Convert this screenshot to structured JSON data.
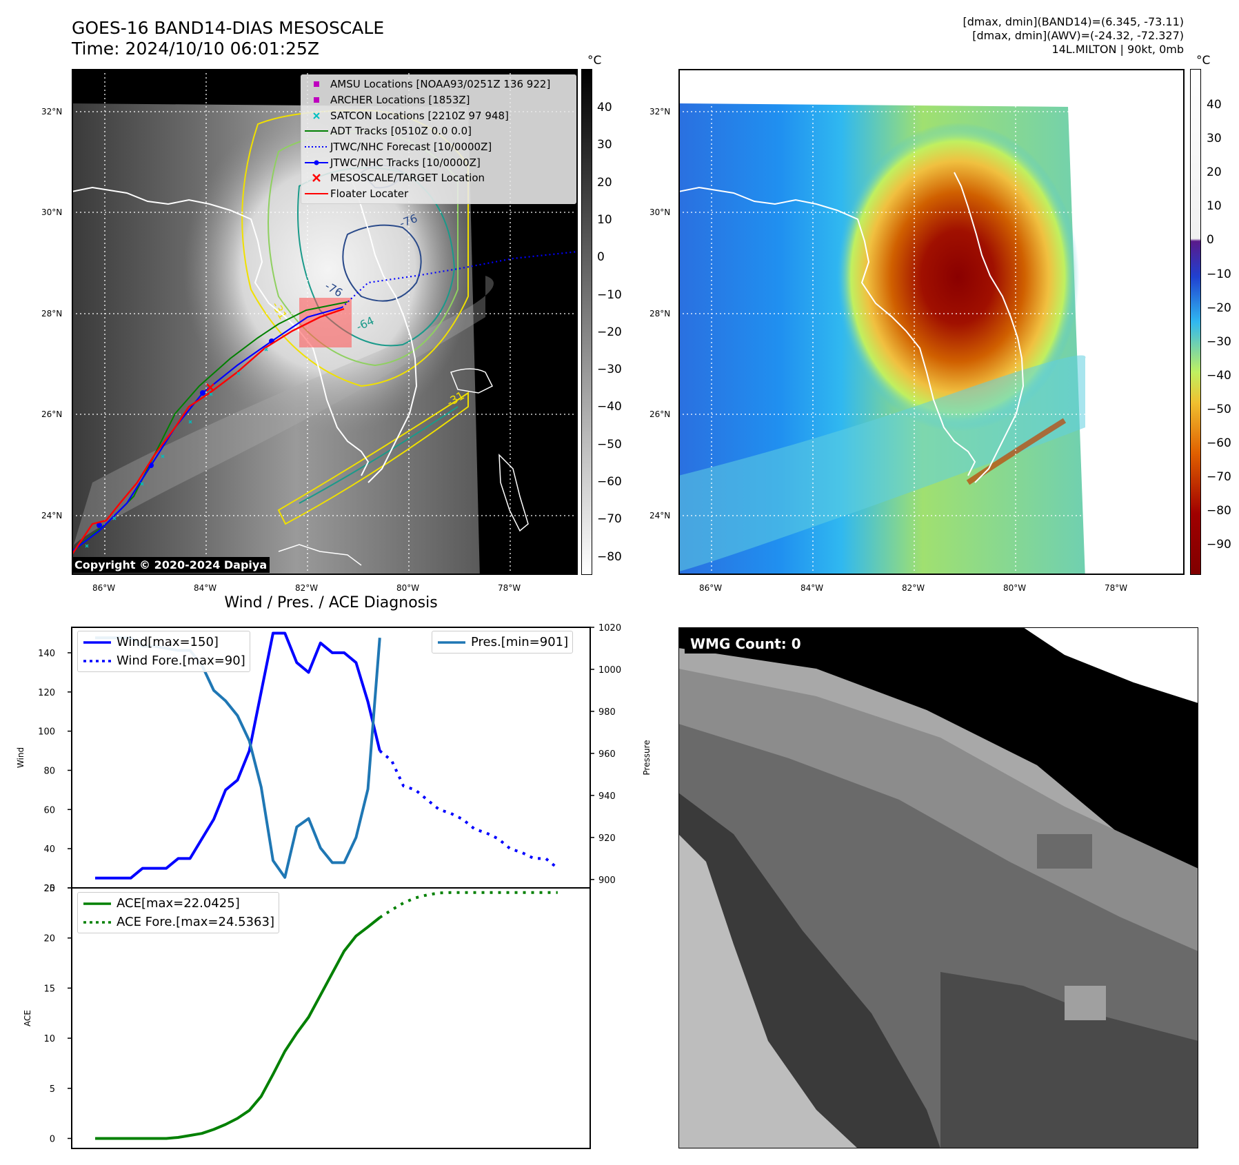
{
  "header": {
    "title_line1": "GOES-16 BAND14-DIAS MESOSCALE",
    "title_line2": "Time: 2024/10/10 06:01:25Z",
    "right_line1": "[dmax, dmin](BAND14)=(6.345, -73.11)",
    "right_line2": "[dmax, dmin](AWV)=(-24.32, -72.327)",
    "right_line3": "14L.MILTON | 90kt, 0mb"
  },
  "map": {
    "lat_labels": [
      "32°N",
      "30°N",
      "28°N",
      "26°N",
      "24°N"
    ],
    "lon_labels": [
      "86°W",
      "84°W",
      "82°W",
      "80°W",
      "78°W"
    ],
    "copyright": "Copyright © 2020-2024 Dapiya",
    "contour_labels": [
      "-76",
      "-76",
      "-64",
      "-31",
      "-31"
    ],
    "legend": [
      {
        "label": "AMSU Locations [NOAA93/0251Z 136 922]",
        "symbol": "square",
        "color": "#bf00bf"
      },
      {
        "label": "ARCHER Locations [1853Z]",
        "symbol": "square",
        "color": "#bf00bf"
      },
      {
        "label": "SATCON Locations [2210Z 97 948]",
        "symbol": "x",
        "color": "#00bfbf"
      },
      {
        "label": "ADT Tracks [0510Z 0.0 0.0]",
        "symbol": "line",
        "color": "#008000"
      },
      {
        "label": "JTWC/NHC Forecast [10/0000Z]",
        "symbol": "dotted",
        "color": "#0000ff"
      },
      {
        "label": "JTWC/NHC Tracks [10/0000Z]",
        "symbol": "line-dot",
        "color": "#0000ff"
      },
      {
        "label": "MESOSCALE/TARGET Location",
        "symbol": "x",
        "color": "#ff0000"
      },
      {
        "label": "Floater Locater",
        "symbol": "line",
        "color": "#ff0000"
      }
    ]
  },
  "colorbar_left": {
    "unit": "°C",
    "ticks": [
      "40",
      "30",
      "20",
      "10",
      "0",
      "−10",
      "−20",
      "−30",
      "−40",
      "−50",
      "−60",
      "−70",
      "−80"
    ]
  },
  "colorbar_right": {
    "unit": "°C",
    "ticks": [
      "40",
      "30",
      "20",
      "10",
      "0",
      "−10",
      "−20",
      "−30",
      "−40",
      "−50",
      "−60",
      "−70",
      "−80",
      "−90"
    ]
  },
  "wmg": {
    "label": "WMG Count: 0"
  },
  "colors": {
    "wind": "#0000ff",
    "pressure": "#1f77b4",
    "ace": "#008000",
    "track_red": "#ff0000"
  },
  "chart_data": [
    {
      "type": "line",
      "title": "Wind / Pres. / ACE Diagnosis",
      "ylabel": "Wind",
      "y2label": "Pressure",
      "ylim": [
        20,
        153
      ],
      "y2lim": [
        896,
        1020
      ],
      "yticks": [
        "140",
        "120",
        "100",
        "80",
        "60",
        "40",
        "20"
      ],
      "y2ticks": [
        "1020",
        "1000",
        "980",
        "960",
        "940",
        "920",
        "900"
      ],
      "series": [
        {
          "name": "Wind[max=150]",
          "axis": "left",
          "style": "solid",
          "color": "#0000ff",
          "values": [
            25,
            25,
            25,
            25,
            30,
            30,
            30,
            35,
            35,
            45,
            55,
            70,
            75,
            90,
            120,
            150,
            150,
            135,
            130,
            145,
            140,
            140,
            135,
            115,
            90
          ]
        },
        {
          "name": "Wind Fore.[max=90]",
          "axis": "left",
          "style": "dotted",
          "color": "#0000ff",
          "values": [
            90,
            85,
            72,
            70,
            65,
            60,
            58,
            55,
            50,
            48,
            45,
            40,
            38,
            35,
            35,
            30
          ]
        },
        {
          "name": "Pres.[min=901]",
          "axis": "right",
          "style": "solid",
          "color": "#1f77b4",
          "values": [
            1015,
            1015,
            1015,
            1015,
            1011,
            1011,
            1010,
            1009,
            1009,
            1002,
            990,
            985,
            978,
            966,
            944,
            909,
            901,
            925,
            929,
            915,
            908,
            908,
            920,
            943,
            1015
          ]
        }
      ]
    },
    {
      "type": "line",
      "ylabel": "ACE",
      "ylim": [
        -1,
        25
      ],
      "yticks": [
        "25",
        "20",
        "15",
        "10",
        "5",
        "0"
      ],
      "series": [
        {
          "name": "ACE[max=22.0425]",
          "style": "solid",
          "color": "#008000",
          "values": [
            0,
            0,
            0,
            0,
            0,
            0,
            0,
            0.1,
            0.3,
            0.5,
            0.9,
            1.4,
            2.0,
            2.8,
            4.2,
            6.4,
            8.7,
            10.5,
            12.1,
            14.3,
            16.5,
            18.7,
            20.2,
            21.1,
            22.0425
          ]
        },
        {
          "name": "ACE Fore.[max=24.5363]",
          "style": "dotted",
          "color": "#008000",
          "values": [
            22.0425,
            22.8,
            23.5,
            24.0,
            24.3,
            24.5,
            24.5363,
            24.5363,
            24.5363,
            24.5363,
            24.5363,
            24.5363,
            24.5363,
            24.5363,
            24.5363,
            24.5363
          ]
        }
      ]
    }
  ]
}
